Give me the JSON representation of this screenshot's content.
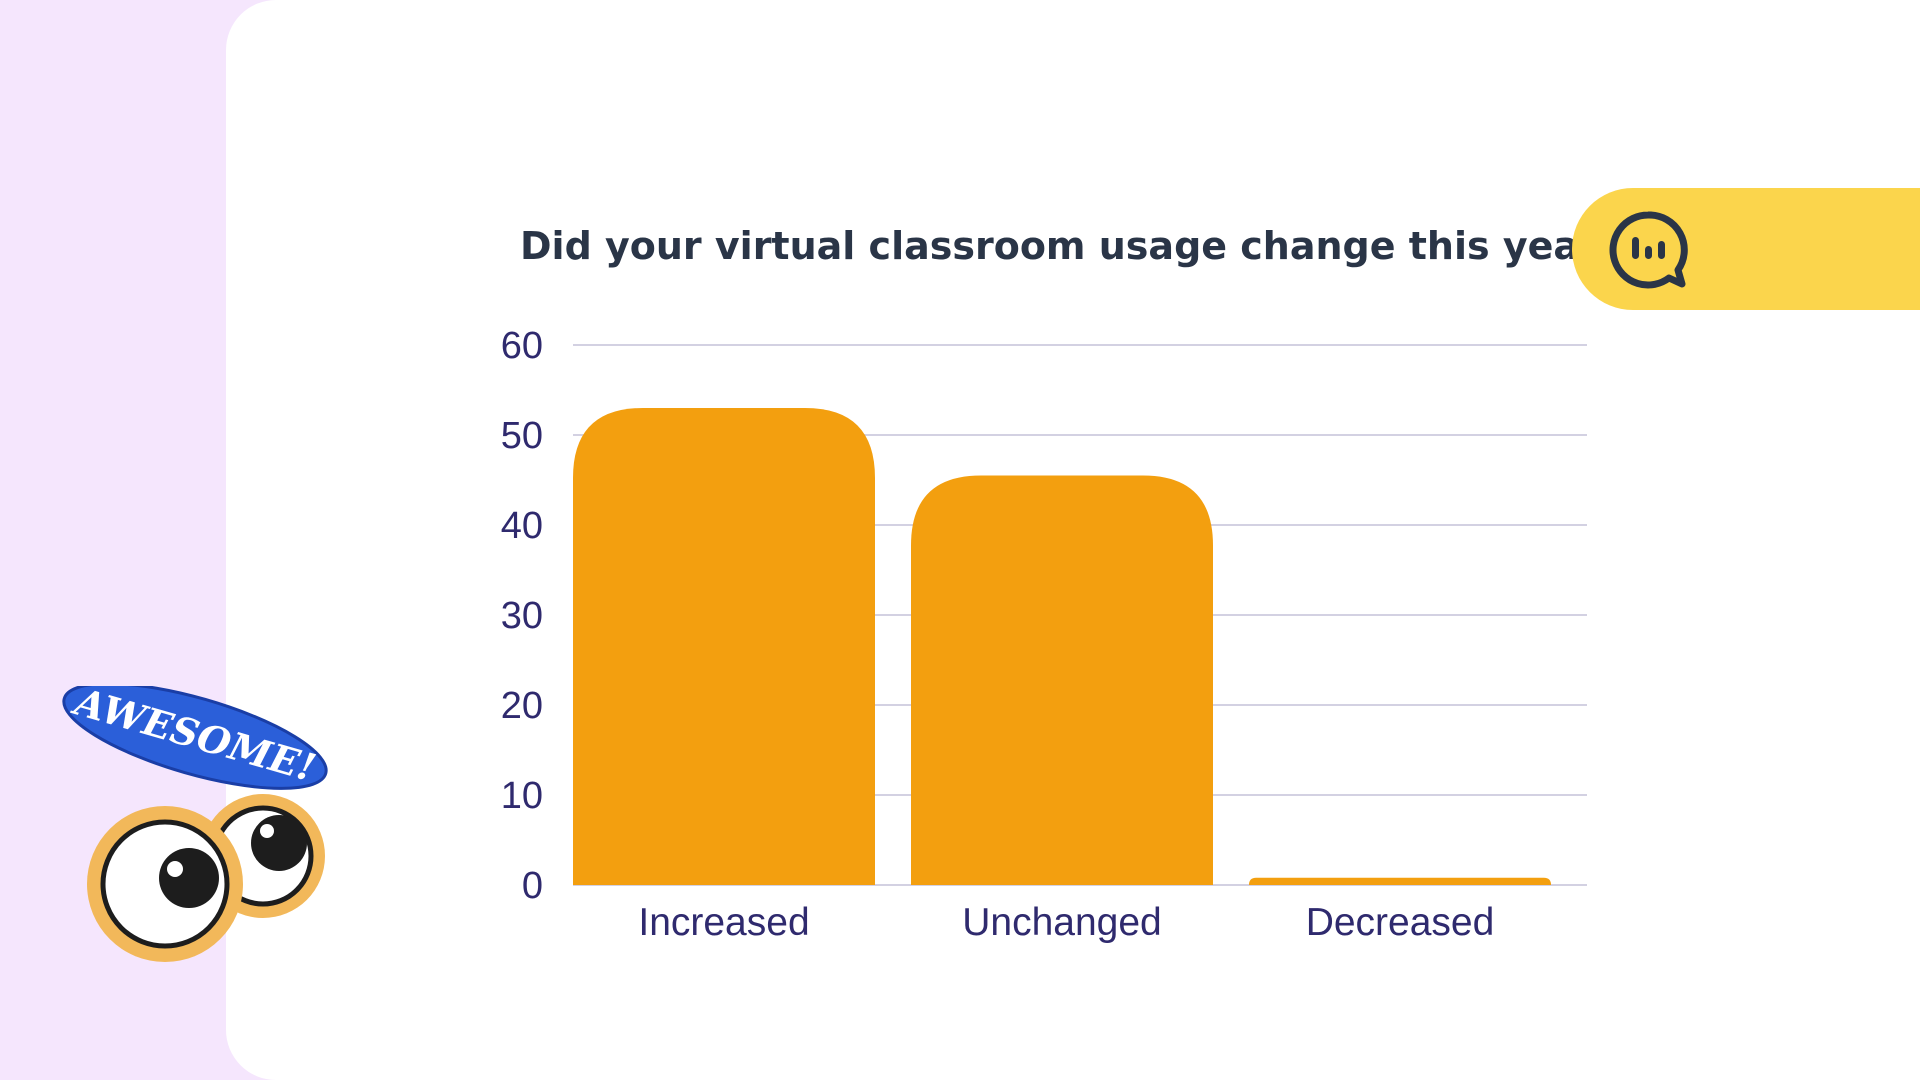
{
  "chart_data": {
    "type": "bar",
    "title": "Did your virtual classroom usage change this year?",
    "categories": [
      "Increased",
      "Unchanged",
      "Decreased"
    ],
    "values": [
      53,
      45.5,
      0.8
    ],
    "ylim": [
      0,
      60
    ],
    "yticks": [
      "0",
      "10",
      "20",
      "30",
      "40",
      "50",
      "60"
    ],
    "grid": true,
    "bar_color": "#f39f0f",
    "grid_color": "#d3d1e2"
  },
  "sticker": {
    "text": "AWESOME!"
  },
  "icons": {
    "poll": "bar-chart-speech-bubble-icon"
  },
  "colors": {
    "background": "#f5e6fd",
    "card": "#ffffff",
    "accent": "#fbd54c",
    "sticker_blue": "#2b5fd9",
    "ring": "#f2b85a"
  }
}
